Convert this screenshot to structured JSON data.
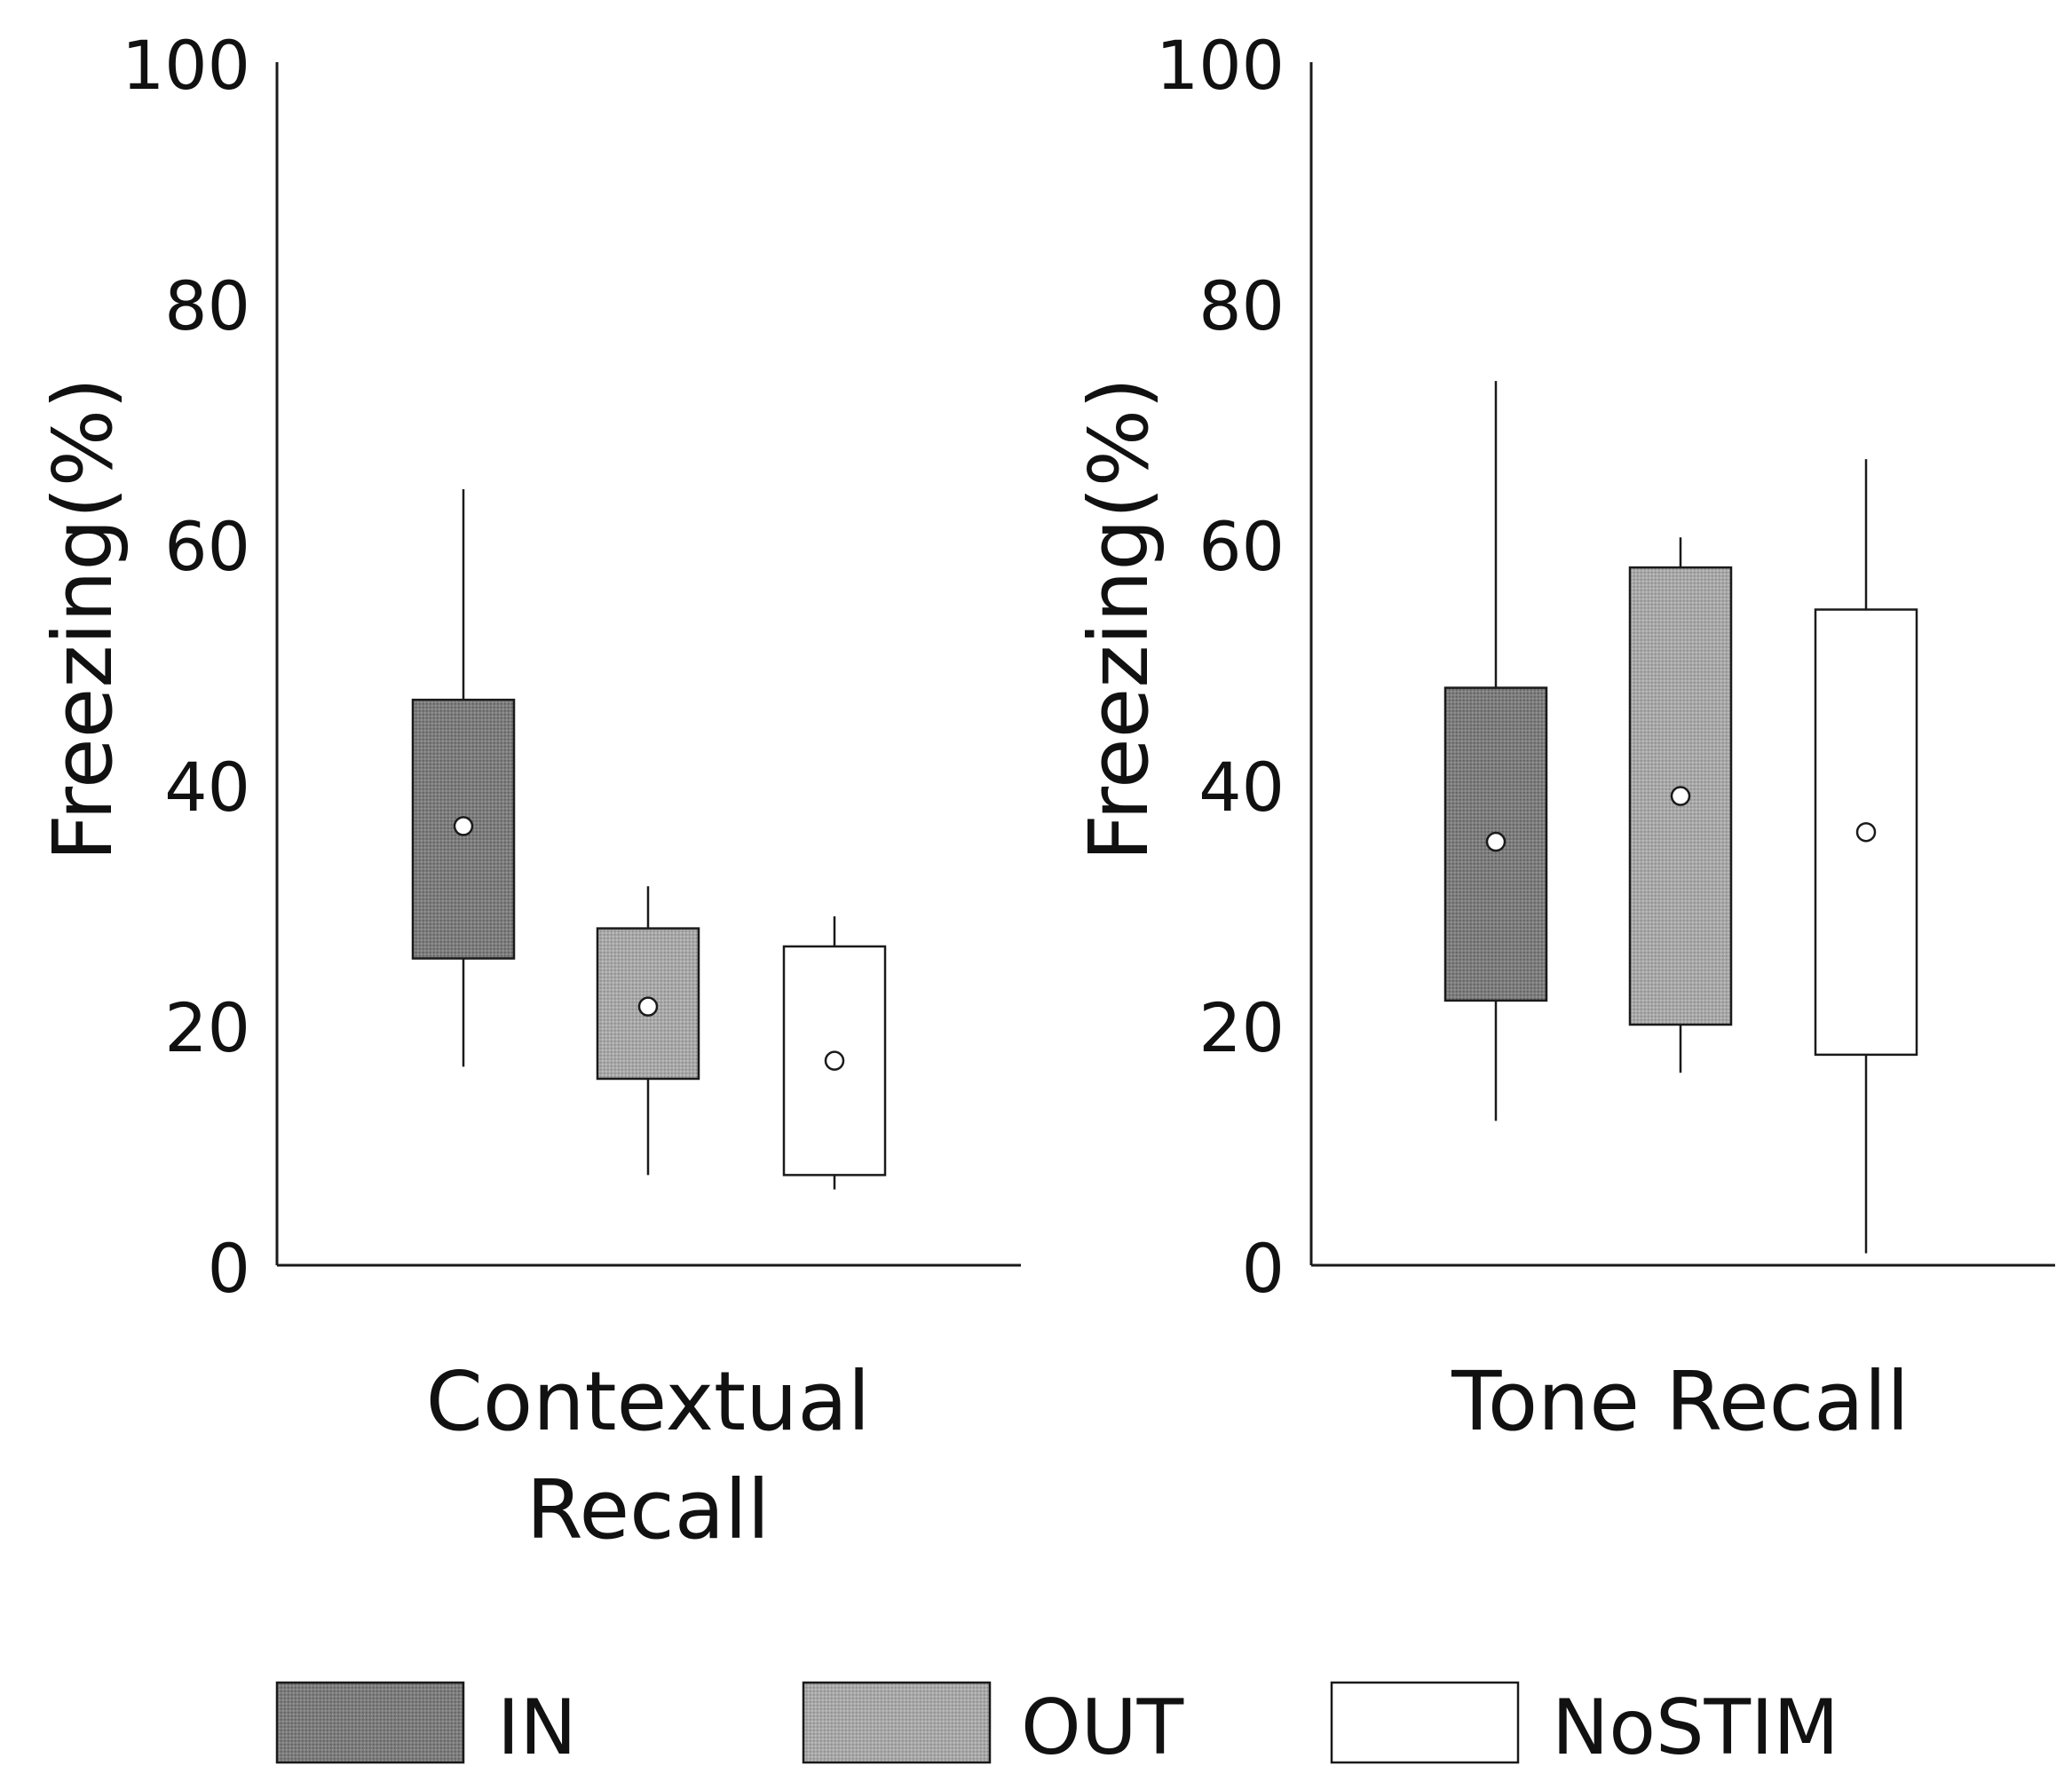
{
  "chart_data": [
    {
      "type": "box",
      "xlabel": "Contextual Recall",
      "ylabel": "Freezing(%)",
      "ylim": [
        0,
        100
      ],
      "yticks": [
        0,
        20,
        40,
        60,
        80,
        100
      ],
      "grid": false,
      "series": [
        {
          "name": "IN",
          "whisker_low": 16.5,
          "q1": 25.5,
          "mean": 36.5,
          "q3": 47,
          "whisker_high": 64.5
        },
        {
          "name": "OUT",
          "whisker_low": 7.5,
          "q1": 15.5,
          "mean": 21.5,
          "q3": 28,
          "whisker_high": 31.5
        },
        {
          "name": "NoSTIM",
          "whisker_low": 6.3,
          "q1": 7.5,
          "mean": 17,
          "q3": 26.5,
          "whisker_high": 29
        }
      ]
    },
    {
      "type": "box",
      "xlabel": "Tone Recall",
      "ylabel": "Freezing(%)",
      "ylim": [
        0,
        100
      ],
      "yticks": [
        0,
        20,
        40,
        60,
        80,
        100
      ],
      "grid": false,
      "series": [
        {
          "name": "IN",
          "whisker_low": 12,
          "q1": 22,
          "mean": 35.2,
          "q3": 48,
          "whisker_high": 73.5
        },
        {
          "name": "OUT",
          "whisker_low": 16,
          "q1": 20,
          "mean": 39,
          "q3": 58,
          "whisker_high": 60.5
        },
        {
          "name": "NoSTIM",
          "whisker_low": 1,
          "q1": 17.5,
          "mean": 36,
          "q3": 54.5,
          "whisker_high": 67
        }
      ]
    }
  ],
  "legend": {
    "placement": "bottom",
    "items": [
      {
        "label": "IN",
        "color": "#7d7d7d"
      },
      {
        "label": "OUT",
        "color": "#a8a8a8"
      },
      {
        "label": "NoSTIM",
        "color": "#ffffff"
      }
    ]
  },
  "colors": {
    "IN": "#7d7d7d",
    "OUT": "#a8a8a8",
    "NoSTIM": "#ffffff",
    "stroke": "#1a1a1a"
  }
}
